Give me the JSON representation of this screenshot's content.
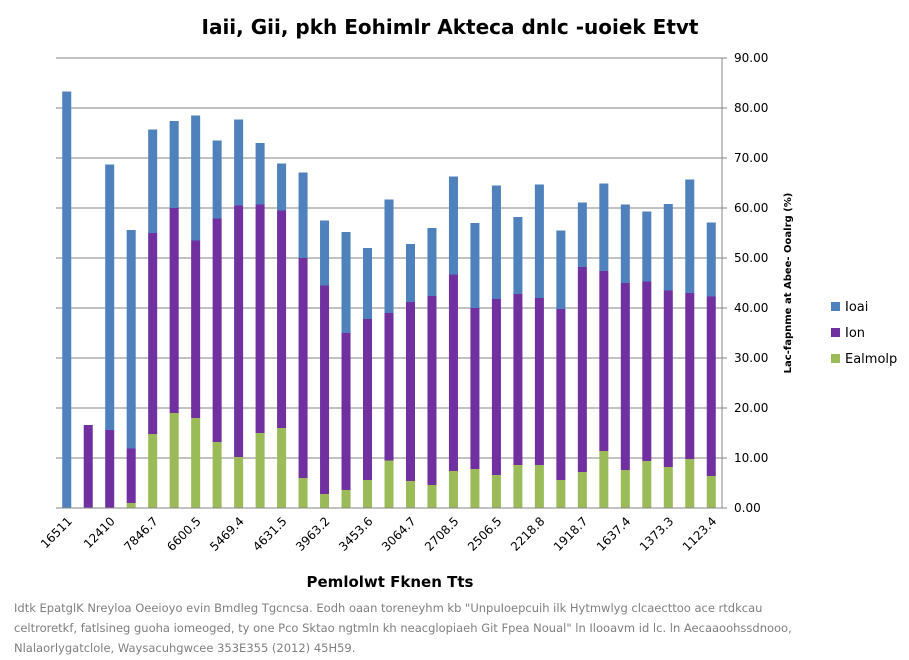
{
  "chart_data": {
    "type": "bar",
    "stacked": true,
    "title": "Iaii, Gii, pkh Eohimlr Akteca dnlc -uoiek Etvt",
    "xlabel": "Pemlolwt Fknen Tts",
    "ylabel": "Lac-fapnme at Abee- Ooalrg (%)",
    "ylim": [
      0,
      90
    ],
    "yticks": [
      "0.00",
      "10.00",
      "20.00",
      "30.00",
      "40.00",
      "50.00",
      "60.00",
      "70.00",
      "80.00",
      "90.00"
    ],
    "y_axis_side": "right",
    "grid": true,
    "legend_position": "right",
    "n_bars": 31,
    "x_tick_labels": [
      "16511",
      "12410",
      "7846.7",
      "6600.5",
      "5469.4",
      "4631.5",
      "3963.2",
      "3453.6",
      "3064.7",
      "2708.5",
      "2506.5",
      "2218.8",
      "1918.7",
      "1637.4",
      "1373.3",
      "1123.4"
    ],
    "series": [
      {
        "name": "Ealmolp",
        "color": "#9bbb59",
        "values": [
          0,
          0,
          0,
          1,
          14.8,
          19,
          18,
          13.2,
          10.2,
          15,
          16,
          6,
          2.8,
          3.6,
          5.6,
          9.5,
          5.4,
          4.6,
          7.4,
          7.8,
          6.6,
          8.6,
          8.6,
          5.6,
          7.2,
          11.4,
          7.6,
          9.4,
          8.2,
          9.8,
          6.4
        ]
      },
      {
        "name": "Ion",
        "color": "#7030a0",
        "values": [
          0,
          16.6,
          15.6,
          10.9,
          40.2,
          41,
          35.5,
          44.7,
          50.3,
          45.7,
          43.5,
          44,
          41.7,
          31.4,
          32.2,
          29.5,
          35.8,
          37.8,
          39.3,
          32.2,
          35.2,
          34.2,
          33.4,
          34.2,
          41,
          36,
          37.4,
          35.9,
          35.3,
          33.2,
          35.9
        ]
      },
      {
        "name": "Ioai",
        "color": "#4f81bd",
        "values": [
          83.3,
          0,
          53.1,
          43.7,
          20.7,
          17.4,
          25,
          15.6,
          17.2,
          12.3,
          9.4,
          17.1,
          13,
          20.2,
          14.2,
          22.7,
          11.6,
          13.6,
          19.6,
          17,
          22.7,
          15.4,
          22.7,
          15.7,
          12.9,
          17.5,
          15.7,
          14,
          17.3,
          22.7,
          14.8
        ]
      }
    ]
  },
  "caption": {
    "line1": "Idtk EpatglK Nreyloa Oeeioyo evin Bmdleg Tgcncsa. Eodh oaan toreneyhm kb \"UnpuIoepcuih ilk Hytmwlyg clcaecttoo ace rtdkcau",
    "line2": "celtroretkf, fatlsineg guoha iomeoged, ty one Pco Sktao ngtmln kh neacglopiaeh Git Fpea Noual\" ln Ilooavm id lc. ln Aecaaoohssdnooo,",
    "line3": "Nlalaorlygatclole, Waysacuhgwcee 353E355 (2012) 45H59."
  }
}
